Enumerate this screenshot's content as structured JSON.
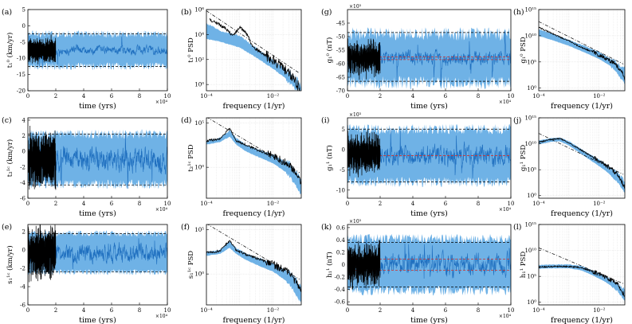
{
  "colors": {
    "ensemble_band": "#6fb2e6",
    "realization": "#1f6fbf",
    "observation": "#000000",
    "reference": "#d0312d",
    "bounds": "#000000"
  },
  "chart_data": [
    {
      "id": "a",
      "type": "line",
      "panel_label": "(a)",
      "kind": "time",
      "ylabel": "t₁⁰ (km/yr)",
      "xlabel": "time (yrs)",
      "x_multiplier": "×10⁴",
      "xlim": [
        0,
        10
      ],
      "ylim": [
        -20,
        5
      ],
      "xticks": [
        "0",
        "2",
        "4",
        "6",
        "8",
        "10"
      ],
      "yticks": [
        "-20",
        "-15",
        "-10",
        "-5",
        "0",
        "5"
      ],
      "yticks_v": [
        -20,
        -15,
        -10,
        -5,
        0,
        5
      ],
      "band_mean": -7.5,
      "band_half": 5.0,
      "band_noise": 1.2,
      "realization_amp": 2.3,
      "obs_mean": -7.5,
      "obs_amp": 3.6,
      "bounds": [
        -2.5,
        -12.5
      ],
      "ref_lines": []
    },
    {
      "id": "b",
      "type": "line",
      "panel_label": "(b)",
      "kind": "psd",
      "ylabel": "t₁⁰ PSD",
      "xlabel": "frequency (1/yr)",
      "xlim_log": [
        -4,
        -1.15
      ],
      "ylim_log": [
        -0.5,
        6
      ],
      "xticks": [
        "10⁻⁴",
        "10⁻²"
      ],
      "xticks_v": [
        -4,
        -2
      ],
      "yticks": [
        "10⁰",
        "10²",
        "10⁴",
        "10⁶"
      ],
      "yticks_v": [
        0,
        2,
        4,
        6
      ],
      "band": [
        [
          -4,
          4.9,
          3.7
        ],
        [
          -3.5,
          4.2,
          3.4
        ],
        [
          -3.0,
          3.9,
          3.0
        ],
        [
          -2.5,
          2.9,
          2.2
        ],
        [
          -2.0,
          2.0,
          1.3
        ],
        [
          -1.5,
          1.0,
          0.3
        ],
        [
          -1.15,
          0.0,
          -0.5
        ]
      ],
      "obs": [
        [
          -3.9,
          5.2
        ],
        [
          -3.6,
          4.8
        ],
        [
          -3.4,
          4.4
        ],
        [
          -3.2,
          3.9
        ],
        [
          -3.0,
          4.6
        ],
        [
          -2.8,
          4.1
        ],
        [
          -2.6,
          3.0
        ],
        [
          -2.3,
          2.5
        ],
        [
          -2.0,
          1.9
        ],
        [
          -1.7,
          1.3
        ],
        [
          -1.4,
          0.6
        ],
        [
          -1.2,
          -0.3
        ]
      ],
      "ref_line": [
        [
          -4,
          5.9
        ],
        [
          -1.2,
          0.9
        ]
      ]
    },
    {
      "id": "c",
      "type": "line",
      "panel_label": "(c)",
      "kind": "time",
      "ylabel": "t₂¹ᶜ (km/yr)",
      "xlabel": "time (yrs)",
      "x_multiplier": "×10⁴",
      "xlim": [
        0,
        10
      ],
      "ylim": [
        -6,
        4.3
      ],
      "xticks": [
        "0",
        "2",
        "4",
        "6",
        "8",
        "10"
      ],
      "yticks": [
        "-6",
        "-4",
        "-2",
        "0",
        "2",
        "4"
      ],
      "yticks_v": [
        -6,
        -4,
        -2,
        0,
        2,
        4
      ],
      "band_mean": -1.0,
      "band_half": 3.2,
      "band_noise": 0.6,
      "realization_amp": 2.7,
      "obs_mean": -1.0,
      "obs_amp": 3.4,
      "bounds": [
        2.2,
        -4.3
      ],
      "ref_lines": []
    },
    {
      "id": "d",
      "type": "line",
      "panel_label": "(d)",
      "kind": "psd",
      "ylabel": "t₂¹ᶜ PSD",
      "xlabel": "frequency (1/yr)",
      "xlim_log": [
        -4,
        -1.15
      ],
      "ylim_log": [
        -3.5,
        5.6
      ],
      "xticks": [
        "10⁻⁴",
        "10⁻²"
      ],
      "xticks_v": [
        -4,
        -2
      ],
      "yticks": [
        "10⁰",
        "10⁵"
      ],
      "yticks_v": [
        0,
        5
      ],
      "band": [
        [
          -4,
          3.0,
          2.6
        ],
        [
          -3.6,
          3.3,
          2.9
        ],
        [
          -3.3,
          4.2,
          3.5
        ],
        [
          -3.1,
          3.3,
          2.6
        ],
        [
          -2.8,
          2.5,
          1.8
        ],
        [
          -2.5,
          2.1,
          1.3
        ],
        [
          -2.0,
          1.4,
          0.5
        ],
        [
          -1.5,
          0.4,
          -0.8
        ],
        [
          -1.15,
          -1.3,
          -3.0
        ]
      ],
      "obs": [
        [
          -4,
          3.0
        ],
        [
          -3.6,
          3.2
        ],
        [
          -3.3,
          4.4
        ],
        [
          -3.1,
          3.0
        ],
        [
          -2.8,
          2.5
        ],
        [
          -2.5,
          2.0
        ],
        [
          -2.0,
          1.3
        ],
        [
          -1.5,
          0.3
        ],
        [
          -1.15,
          -1.6
        ]
      ],
      "ref_line": [
        [
          -4,
          5.7
        ],
        [
          -1.2,
          -0.6
        ]
      ]
    },
    {
      "id": "e",
      "type": "line",
      "panel_label": "(e)",
      "kind": "time",
      "ylabel": "s₁¹ᶜ (km/yr)",
      "xlabel": "time (yrs)",
      "x_multiplier": "×10⁴",
      "xlim": [
        0,
        10
      ],
      "ylim": [
        -6,
        2.8
      ],
      "xticks": [
        "0",
        "2",
        "4",
        "6",
        "8",
        "10"
      ],
      "yticks": [
        "-6",
        "-4",
        "-2",
        "0",
        "2"
      ],
      "yticks_v": [
        -6,
        -4,
        -2,
        0,
        2
      ],
      "band_mean": -0.3,
      "band_half": 2.1,
      "band_noise": 0.35,
      "realization_amp": 1.7,
      "obs_mean": -0.3,
      "obs_amp": 2.7,
      "bounds": [
        1.8,
        -2.4
      ],
      "ref_lines": []
    },
    {
      "id": "f",
      "type": "line",
      "panel_label": "(f)",
      "kind": "psd",
      "ylabel": "s₁¹ᶜ PSD",
      "xlabel": "frequency (1/yr)",
      "xlim_log": [
        -4,
        -1.15
      ],
      "ylim_log": [
        -3.5,
        5.6
      ],
      "xticks": [
        "10⁻⁴",
        "10⁻²"
      ],
      "xticks_v": [
        -4,
        -2
      ],
      "yticks": [
        "10⁰",
        "10⁵"
      ],
      "yticks_v": [
        0,
        5
      ],
      "band": [
        [
          -4,
          2.5,
          2.1
        ],
        [
          -3.6,
          2.7,
          2.3
        ],
        [
          -3.3,
          3.7,
          3.0
        ],
        [
          -3.1,
          2.9,
          2.3
        ],
        [
          -2.8,
          2.3,
          1.6
        ],
        [
          -2.5,
          1.9,
          1.1
        ],
        [
          -2.0,
          1.2,
          0.3
        ],
        [
          -1.5,
          0.2,
          -1.0
        ],
        [
          -1.15,
          -1.5,
          -3.1
        ]
      ],
      "obs": [
        [
          -4,
          2.4
        ],
        [
          -3.6,
          2.6
        ],
        [
          -3.3,
          3.8
        ],
        [
          -3.1,
          2.7
        ],
        [
          -2.8,
          2.2
        ],
        [
          -2.5,
          1.8
        ],
        [
          -2.0,
          1.1
        ],
        [
          -1.5,
          0.1
        ],
        [
          -1.15,
          -1.8
        ]
      ],
      "ref_line": [
        [
          -4,
          5.7
        ],
        [
          -1.2,
          -0.6
        ]
      ]
    },
    {
      "id": "g",
      "type": "line",
      "panel_label": "(g)",
      "kind": "time",
      "ylabel": "g₁⁰ (nT)",
      "xlabel": "time (yrs)",
      "x_multiplier": "×10⁴",
      "y_multiplier": "×10³",
      "xlim": [
        0,
        10
      ],
      "ylim": [
        -70,
        -40
      ],
      "xticks": [
        "0",
        "2",
        "4",
        "6",
        "8",
        "10"
      ],
      "yticks": [
        "-70",
        "-65",
        "-60",
        "-55",
        "-50",
        "-45"
      ],
      "yticks_v": [
        -70,
        -65,
        -60,
        -55,
        -50,
        -45
      ],
      "band_mean": -58,
      "band_half": 9,
      "band_noise": 2.5,
      "realization_amp": 4.5,
      "obs_mean": -58,
      "obs_amp": 6,
      "bounds": [
        -48.5,
        -66.5
      ],
      "ref_lines": [
        -57.5,
        -58.5
      ]
    },
    {
      "id": "h",
      "type": "line",
      "panel_label": "(h)",
      "kind": "psd",
      "ylabel": "g₁⁰ PSD",
      "xlabel": "frequency (1/yr)",
      "xlim_log": [
        -4,
        -1.15
      ],
      "ylim_log": [
        -0.5,
        15
      ],
      "xticks": [
        "10⁻⁴",
        "10⁻²"
      ],
      "xticks_v": [
        -4,
        -2
      ],
      "yticks": [
        "10⁰",
        "10⁵",
        "10¹⁰",
        "10¹⁵"
      ],
      "yticks_v": [
        0,
        5,
        10,
        15
      ],
      "band": [
        [
          -4,
          11.2,
          10.0
        ],
        [
          -3.5,
          10.3,
          9.1
        ],
        [
          -3.0,
          9.2,
          8.1
        ],
        [
          -2.5,
          8.1,
          6.9
        ],
        [
          -2.0,
          6.9,
          5.6
        ],
        [
          -1.5,
          5.2,
          3.8
        ],
        [
          -1.15,
          3.8,
          1.0
        ]
      ],
      "obs": [
        [
          -4,
          11.6
        ],
        [
          -3.7,
          10.8
        ],
        [
          -3.4,
          10.0
        ],
        [
          -3.0,
          9.0
        ],
        [
          -2.6,
          7.8
        ],
        [
          -2.2,
          6.9
        ],
        [
          -1.8,
          5.8
        ],
        [
          -1.5,
          4.8
        ],
        [
          -1.3,
          3.6
        ],
        [
          -1.15,
          1.8
        ]
      ],
      "ref_line": [
        [
          -4,
          12.7
        ],
        [
          -1.2,
          4.6
        ]
      ]
    },
    {
      "id": "i",
      "type": "line",
      "panel_label": "(i)",
      "kind": "time",
      "ylabel": "g₁¹ (nT)",
      "xlabel": "time (yrs)",
      "x_multiplier": "×10⁴",
      "y_multiplier": "×10³",
      "xlim": [
        0,
        10
      ],
      "ylim": [
        -12,
        7.8
      ],
      "xticks": [
        "0",
        "2",
        "4",
        "6",
        "8",
        "10"
      ],
      "yticks": [
        "-10",
        "-5",
        "0",
        "5"
      ],
      "yticks_v": [
        -10,
        -5,
        0,
        5
      ],
      "band_mean": -1.5,
      "band_half": 6.5,
      "band_noise": 1.3,
      "realization_amp": 4.5,
      "obs_mean": -1.0,
      "obs_amp": 4.5,
      "bounds": [
        5.0,
        -8.0
      ],
      "ref_lines": [
        -1.5
      ]
    },
    {
      "id": "j",
      "type": "line",
      "panel_label": "(j)",
      "kind": "psd",
      "ylabel": "g₁¹ PSD",
      "xlabel": "frequency (1/yr)",
      "xlim_log": [
        -4,
        -1.15
      ],
      "ylim_log": [
        -0.5,
        15
      ],
      "xticks": [
        "10⁻⁴",
        "10⁻²"
      ],
      "xticks_v": [
        -4,
        -2
      ],
      "yticks": [
        "10⁰",
        "10⁵",
        "10¹⁰",
        "10¹⁵"
      ],
      "yticks_v": [
        0,
        5,
        10,
        15
      ],
      "band": [
        [
          -4,
          10.6,
          9.9
        ],
        [
          -3.6,
          11.1,
          10.4
        ],
        [
          -3.3,
          11.2,
          10.5
        ],
        [
          -3.0,
          10.5,
          9.7
        ],
        [
          -2.6,
          9.0,
          8.1
        ],
        [
          -2.2,
          7.6,
          6.5
        ],
        [
          -1.8,
          6.2,
          4.9
        ],
        [
          -1.4,
          4.4,
          2.8
        ],
        [
          -1.15,
          2.9,
          0.8
        ]
      ],
      "obs": [
        [
          -4,
          10.3
        ],
        [
          -3.6,
          10.8
        ],
        [
          -3.3,
          11.0
        ],
        [
          -3.0,
          10.2
        ],
        [
          -2.6,
          8.8
        ],
        [
          -2.2,
          7.4
        ],
        [
          -1.8,
          6.0
        ],
        [
          -1.4,
          4.2
        ],
        [
          -1.15,
          1.5
        ]
      ],
      "ref_line": [
        [
          -4,
          12.0
        ],
        [
          -1.2,
          4.1
        ]
      ]
    },
    {
      "id": "k",
      "type": "line",
      "panel_label": "(k)",
      "kind": "time",
      "ylabel": "h₁¹ (nT)",
      "xlabel": "time (yrs)",
      "x_multiplier": "×10⁴",
      "y_multiplier": "×10³",
      "xlim": [
        0,
        10
      ],
      "ylim": [
        -0.65,
        0.65
      ],
      "xticks": [
        "0",
        "2",
        "4",
        "6",
        "8",
        "10"
      ],
      "yticks": [
        "-0.6",
        "-0.4",
        "-0.2",
        "0",
        "0.2",
        "0.4",
        "0.6"
      ],
      "yticks_v": [
        -0.6,
        -0.4,
        -0.2,
        0,
        0.2,
        0.4,
        0.6
      ],
      "band_mean": 0.0,
      "band_half": 0.42,
      "band_noise": 0.08,
      "realization_amp": 0.3,
      "obs_mean": 0.0,
      "obs_amp": 0.32,
      "bounds": [
        0.36,
        -0.36
      ],
      "ref_lines": [
        0.09,
        -0.09
      ]
    },
    {
      "id": "l",
      "type": "line",
      "panel_label": "(l)",
      "kind": "psd",
      "ylabel": "h₁¹ PSD",
      "xlabel": "frequency (1/yr)",
      "xlim_log": [
        -4,
        -1.15
      ],
      "ylim_log": [
        -0.5,
        15
      ],
      "xticks": [
        "10⁻⁴",
        "10⁻²"
      ],
      "xticks_v": [
        -4,
        -2
      ],
      "yticks": [
        "10⁰",
        "10⁵",
        "10¹⁰",
        "10¹⁵"
      ],
      "yticks_v": [
        0,
        5,
        10,
        15
      ],
      "band": [
        [
          -4,
          7.2,
          6.5
        ],
        [
          -3.5,
          7.3,
          6.6
        ],
        [
          -3.0,
          7.3,
          6.6
        ],
        [
          -2.6,
          7.0,
          6.2
        ],
        [
          -2.2,
          6.1,
          5.2
        ],
        [
          -1.8,
          5.1,
          4.0
        ],
        [
          -1.4,
          3.7,
          2.4
        ],
        [
          -1.15,
          2.5,
          0.4
        ]
      ],
      "obs": [
        [
          -4,
          6.8
        ],
        [
          -3.5,
          6.9
        ],
        [
          -3.0,
          6.9
        ],
        [
          -2.6,
          6.7
        ],
        [
          -2.2,
          5.9
        ],
        [
          -1.8,
          4.9
        ],
        [
          -1.4,
          3.5
        ],
        [
          -1.15,
          1.2
        ]
      ],
      "ref_line": [
        [
          -4,
          10.5
        ],
        [
          -1.2,
          3.6
        ]
      ]
    }
  ]
}
